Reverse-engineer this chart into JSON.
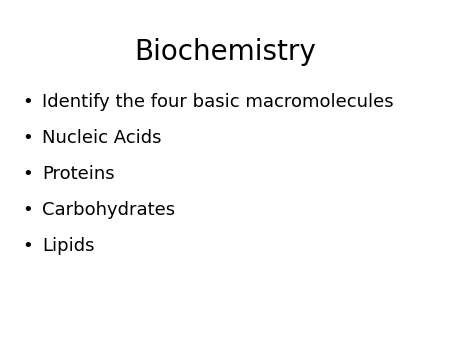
{
  "title": "Biochemistry",
  "title_fontsize": 20,
  "title_color": "#000000",
  "bullet_char": "•",
  "bullet_items": [
    "Identify the four basic macromolecules",
    "Nucleic Acids",
    "Proteins",
    "Carbohydrates",
    "Lipids"
  ],
  "bullet_fontsize": 13,
  "bullet_color": "#000000",
  "background_color": "#ffffff",
  "font_family": "DejaVu Sans"
}
